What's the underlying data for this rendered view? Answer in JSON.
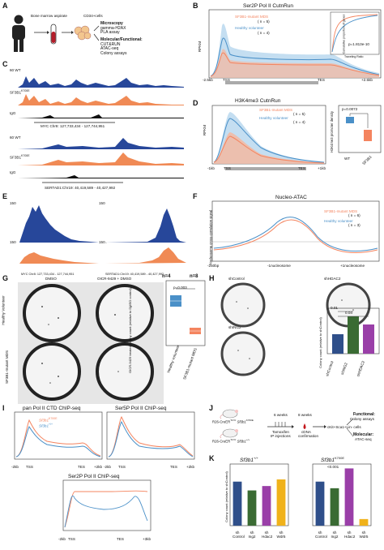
{
  "colors": {
    "mds": "#f4845f",
    "healthy": "#4a90c8",
    "track_blue": "#27479a",
    "track_orange": "#f08a55",
    "igg": "#111111",
    "gray": "#999999"
  },
  "A": {
    "label": "A",
    "sample": "Bone marrow aspirate",
    "cells": "CD34+cells",
    "micro_title": "Microscopy",
    "micro_1": "gamma-H2AX",
    "micro_2": "PLA assay",
    "mol_title": "Molecular/Functional:",
    "mol_1": "CUT&RUN",
    "mol_2": "ATAC-seq",
    "mol_3": "Colony assays"
  },
  "B": {
    "label": "B",
    "title": "Ser2P Pol II CutnRun",
    "ylabel": "RPKM",
    "leg_mds": "SF3B1-mutant MDS",
    "leg_mds_n": "( n = 5)",
    "leg_h": "Healthy volunteer",
    "leg_h_n": "( n = 4)",
    "ticks": [
      "-2.5kb",
      "TSS",
      "TES",
      "+2.5kb"
    ],
    "inset_y": "Cumulative proportion of genes",
    "inset_x": "Traveling Ratio",
    "inset_p": "p=1.813e-10"
  },
  "C": {
    "label": "C",
    "tracks": [
      {
        "name": "WT",
        "scale": "60"
      },
      {
        "name": "SF3B1",
        "scale": "60"
      },
      {
        "name": "IgG",
        "scale": "60"
      },
      {
        "name": "WT",
        "scale": "60"
      },
      {
        "name": "SF3B1",
        "scale": "60"
      },
      {
        "name": "IgG",
        "scale": "60"
      }
    ],
    "sup": "K700E",
    "loc1": "MYC Chr8: 127,733,434 - 127,744,951",
    "loc2": "SERTAD1:Chr19: 40,419,589 - 40,427,992"
  },
  "D": {
    "label": "D",
    "title": "H3K4me3 CutnRun",
    "ylabel": "RPKM",
    "leg_mds": "SF3B1-mutant MDS",
    "leg_mds_n": "( n = 5)",
    "leg_h": "Healthy volunteer",
    "leg_h_n": "( n = 4)",
    "ticks": [
      "-1kb",
      "TSS",
      "TES",
      "+1kb"
    ],
    "box_y": "H3K4me3 promoter density",
    "p": "p=0.0072",
    "xlab": [
      "WT",
      "SF3B1"
    ]
  },
  "E": {
    "label": "E",
    "scale": [
      "150",
      "150",
      "150",
      "150"
    ],
    "loc1": "MYC Chr8: 127,733,434 - 127,744,951",
    "loc2": "SERTAD1:Chr19: 40,419,589 - 40,427,992"
  },
  "F": {
    "label": "F",
    "title": "Nucleo-ATAC",
    "ylabel": "Nucleosome cross-correlation signal",
    "leg_mds": "SF3B1-mutant MDS",
    "leg_mds_n": "( n = 6)",
    "leg_h": "Healthy volunteer",
    "leg_h_n": "( n = 3)",
    "ticks": [
      "-250bp",
      "-1nucleosome",
      "+1nucleosome"
    ]
  },
  "G": {
    "label": "G",
    "col1": "DMSO",
    "col2": "OICR-9429 + DMSO",
    "row1": "Healthy  Volunteer",
    "row2": "SF3B1-mutant MDS",
    "n1": "n=4",
    "n2": "n=8",
    "p": "p=0.003",
    "ylabel": "OICR-9429 treated colony count (relative to DMSO control)",
    "xlab": [
      "Healthy volunteer",
      "SF3B1-mutant MDS"
    ]
  },
  "H": {
    "label": "H",
    "c1": "shControl",
    "c2": "shHDAC2",
    "c3": "shING2",
    "ylabel": "Colony count (relative to shControl)",
    "p1": "0.01",
    "p2": "0.04",
    "xlab": [
      "shControl",
      "shING2",
      "shHDAC2"
    ]
  },
  "I": {
    "label": "I",
    "t1": "pan Pol II CTD ChIP-seq",
    "t2": "Ser5P Pol II ChIP-seq",
    "t3": "Ser2P Pol II ChIP-seq",
    "leg1": "Sf3b1",
    "leg1_sup": "K700E",
    "leg2": "Sf3b1",
    "leg2_sup": "+/+",
    "ticks": [
      "-2kb",
      "TSS",
      "TES",
      "+2kb"
    ],
    "ticks3": [
      "-2kb",
      "TSS",
      "TES",
      "+3kb"
    ]
  },
  "J": {
    "label": "J",
    "mouse1": "R26-CreER",
    "mouse1_gene": "Sf3b1",
    "mouse1_sup": "K700E",
    "mouse2": "R26-CreER",
    "mouse2_gene": "Sf3b1",
    "mouse2_sup": "+/+",
    "w1": "6 weeks",
    "w2": "8 weeks",
    "tam1": "Tamoxifen",
    "tam2": "IP injections",
    "cdna1": "cDNA",
    "cdna2": "confirmation",
    "cells": "cKit+Sca1+Lin- cells",
    "f_title": "Functional:",
    "f_1": "Colony assays",
    "m_title": "Molecular:",
    "m_1": "ATAC-seq"
  },
  "K": {
    "label": "K",
    "title1": "Sf3b1",
    "title1_sup": "+/+",
    "title2": "Sf3b1",
    "title2_sup": "K700E",
    "p": "<0.001",
    "ylabel": "Colony count (relative to shControl)",
    "chart_data": [
      {
        "type": "bar",
        "categories": [
          "sh Control",
          "sh Ing2",
          "sh Hdac2",
          "sh Wdr5"
        ],
        "values": [
          1.0,
          0.8,
          0.9,
          1.05
        ],
        "ylim": [
          0,
          1.4
        ],
        "colors": [
          "#2f4f8a",
          "#3a6b33",
          "#9a3fa8",
          "#f0b21b"
        ]
      },
      {
        "type": "bar",
        "categories": [
          "sh Control",
          "sh Ing2",
          "sh Hdac2",
          "sh Wdr5"
        ],
        "values": [
          1.0,
          0.85,
          1.3,
          0.15
        ],
        "ylim": [
          0,
          1.4
        ],
        "colors": [
          "#2f4f8a",
          "#3a6b33",
          "#9a3fa8",
          "#f0b21b"
        ]
      }
    ]
  }
}
